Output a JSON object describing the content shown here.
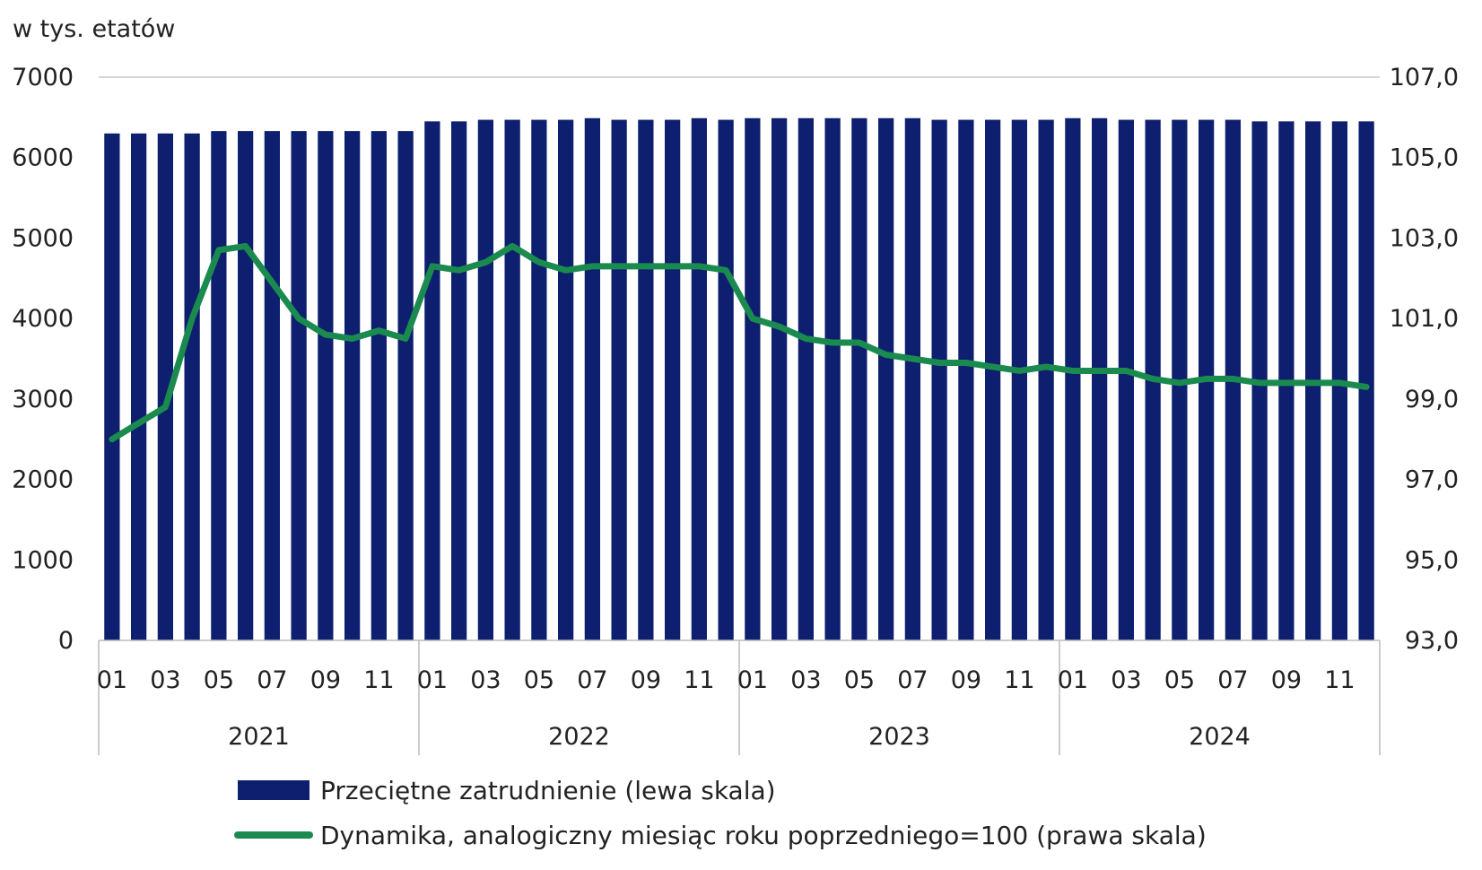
{
  "chart_data": {
    "type": "bar+line",
    "left_axis_unit": "w tys. etatów",
    "left_axis": {
      "min": 0,
      "max": 7000,
      "ticks": [
        "0",
        "1000",
        "2000",
        "3000",
        "4000",
        "5000",
        "6000",
        "7000"
      ]
    },
    "right_axis": {
      "min": 93.0,
      "max": 107.0,
      "ticks": [
        "93,0",
        "95,0",
        "97,0",
        "99,0",
        "101,0",
        "103,0",
        "105,0",
        "107,0"
      ]
    },
    "month_labels": [
      "01",
      "03",
      "05",
      "07",
      "09",
      "11"
    ],
    "years": [
      "2021",
      "2022",
      "2023",
      "2024"
    ],
    "x": [
      "2021-01",
      "2021-02",
      "2021-03",
      "2021-04",
      "2021-05",
      "2021-06",
      "2021-07",
      "2021-08",
      "2021-09",
      "2021-10",
      "2021-11",
      "2021-12",
      "2022-01",
      "2022-02",
      "2022-03",
      "2022-04",
      "2022-05",
      "2022-06",
      "2022-07",
      "2022-08",
      "2022-09",
      "2022-10",
      "2022-11",
      "2022-12",
      "2023-01",
      "2023-02",
      "2023-03",
      "2023-04",
      "2023-05",
      "2023-06",
      "2023-07",
      "2023-08",
      "2023-09",
      "2023-10",
      "2023-11",
      "2023-12",
      "2024-01",
      "2024-02",
      "2024-03",
      "2024-04",
      "2024-05",
      "2024-06",
      "2024-07",
      "2024-08",
      "2024-09",
      "2024-10",
      "2024-11",
      "2024-12"
    ],
    "series": [
      {
        "name": "Przeciętne zatrudnienie (lewa skala)",
        "type": "bar",
        "axis": "left",
        "color": "#0d1f6e",
        "values": [
          6300,
          6300,
          6300,
          6300,
          6330,
          6330,
          6330,
          6330,
          6330,
          6330,
          6330,
          6330,
          6450,
          6450,
          6470,
          6470,
          6470,
          6470,
          6490,
          6470,
          6470,
          6470,
          6490,
          6470,
          6490,
          6490,
          6490,
          6490,
          6490,
          6490,
          6490,
          6470,
          6470,
          6470,
          6470,
          6470,
          6490,
          6490,
          6470,
          6470,
          6470,
          6470,
          6470,
          6450,
          6450,
          6450,
          6450,
          6450
        ]
      },
      {
        "name": "Dynamika, analogiczny miesiąc roku poprzedniego=100 (prawa skala)",
        "type": "line",
        "axis": "right",
        "color": "#1a8a4e",
        "values": [
          98.0,
          98.4,
          98.8,
          101.0,
          102.7,
          102.8,
          101.9,
          101.0,
          100.6,
          100.5,
          100.7,
          100.5,
          102.3,
          102.2,
          102.4,
          102.8,
          102.4,
          102.2,
          102.3,
          102.3,
          102.3,
          102.3,
          102.3,
          102.2,
          101.0,
          100.8,
          100.5,
          100.4,
          100.4,
          100.1,
          100.0,
          99.9,
          99.9,
          99.8,
          99.7,
          99.8,
          99.7,
          99.7,
          99.7,
          99.5,
          99.4,
          99.5,
          99.5,
          99.4,
          99.4,
          99.4,
          99.4,
          99.3
        ]
      }
    ],
    "legend_position": "bottom",
    "grid": "horizontal-top-only"
  }
}
